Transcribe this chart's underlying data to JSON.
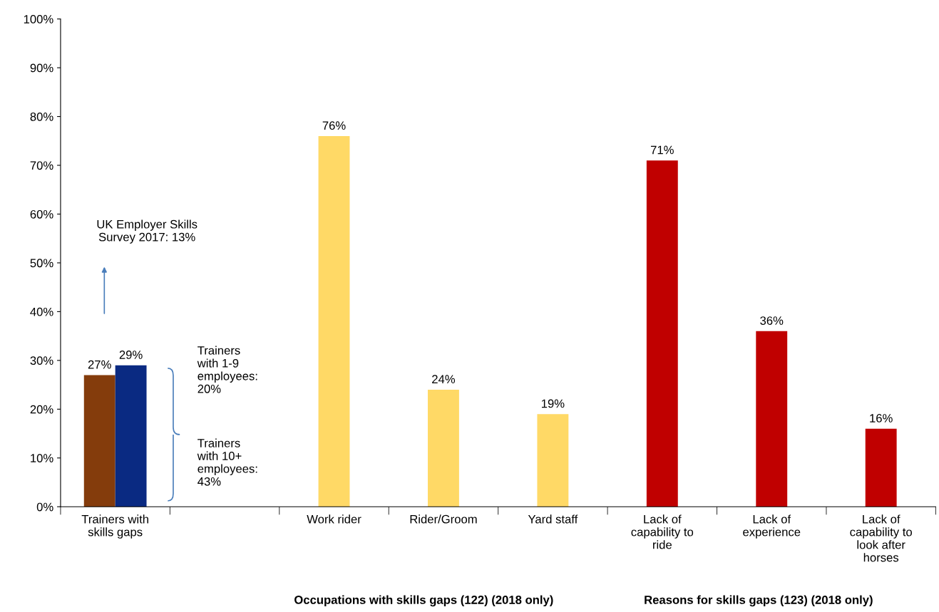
{
  "chart_data": {
    "type": "bar",
    "categories": [
      "Trainers with skills gaps",
      null,
      "Work rider",
      "Rider/Groom",
      "Yard staff",
      "Lack of capability to ride",
      "Lack of experience",
      "Lack of capability to look after horses"
    ],
    "series": [
      {
        "color": "#843c0c",
        "values": [
          27,
          null,
          null,
          null,
          null,
          null,
          null,
          null
        ],
        "value_labels": [
          "27%",
          null,
          null,
          null,
          null,
          null,
          null,
          null
        ]
      },
      {
        "color": "#0a2a82",
        "values": [
          29,
          null,
          null,
          null,
          null,
          null,
          null,
          null
        ],
        "value_labels": [
          "29%",
          null,
          null,
          null,
          null,
          null,
          null,
          null
        ]
      },
      {
        "color": "#ffd966",
        "values": [
          null,
          null,
          76,
          24,
          19,
          null,
          null,
          null
        ],
        "value_labels": [
          null,
          null,
          "76%",
          "24%",
          "19%",
          null,
          null,
          null
        ]
      },
      {
        "color": "#c00000",
        "values": [
          null,
          null,
          null,
          null,
          null,
          71,
          36,
          16
        ],
        "value_labels": [
          null,
          null,
          null,
          null,
          null,
          "71%",
          "36%",
          "16%"
        ]
      }
    ],
    "ylim": [
      0,
      100
    ],
    "yticks": [
      {
        "value": 0,
        "label": "0%"
      },
      {
        "value": 10,
        "label": "10%"
      },
      {
        "value": 20,
        "label": "20%"
      },
      {
        "value": 30,
        "label": "30%"
      },
      {
        "value": 40,
        "label": "40%"
      },
      {
        "value": 50,
        "label": "50%"
      },
      {
        "value": 60,
        "label": "60%"
      },
      {
        "value": 70,
        "label": "70%"
      },
      {
        "value": 80,
        "label": "80%"
      },
      {
        "value": 90,
        "label": "90%"
      },
      {
        "value": 100,
        "label": "100%"
      }
    ],
    "grid": false,
    "annotations": [
      "UK Employer Skills Survey 2017: 13%",
      "Trainers with 1-9 employees: 20%",
      "Trainers with 10+ employees: 43%",
      "Occupations with skills gaps (122) (2018 only)",
      "Reasons for skills gaps (123) (2018 only)"
    ]
  }
}
